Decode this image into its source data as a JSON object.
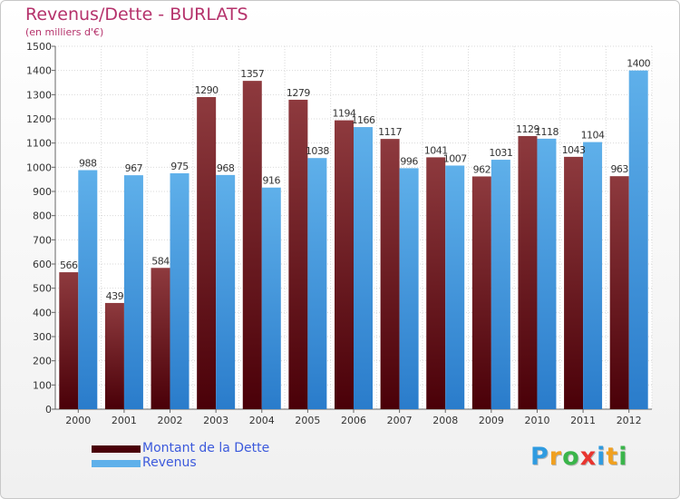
{
  "colors": {
    "dette_dark": "#4a0008",
    "dette_light": "#8e3a3e",
    "revenus_dark": "#2a7ccb",
    "revenus_light": "#5fb0ea",
    "title": "#b5326b",
    "legend_text": "#3c5adc"
  },
  "chart_data": {
    "type": "bar",
    "title": "Revenus/Dette - BURLATS",
    "subtitle": "(en milliers d'€)",
    "categories": [
      "2000",
      "2001",
      "2002",
      "2003",
      "2004",
      "2005",
      "2006",
      "2007",
      "2008",
      "2009",
      "2010",
      "2011",
      "2012"
    ],
    "series": [
      {
        "name": "Montant de la Dette",
        "values": [
          566,
          439,
          584,
          1290,
          1357,
          1279,
          1194,
          1117,
          1041,
          962,
          1129,
          1043,
          963
        ]
      },
      {
        "name": "Revenus",
        "values": [
          988,
          967,
          975,
          968,
          916,
          1038,
          1166,
          996,
          1007,
          1031,
          1118,
          1104,
          1400
        ]
      }
    ],
    "ylim": [
      0,
      1500
    ],
    "yticks": [
      0,
      100,
      200,
      300,
      400,
      500,
      600,
      700,
      800,
      900,
      1000,
      1100,
      1200,
      1300,
      1400,
      1500
    ],
    "grid": true,
    "legend_placement": "bottom-left"
  },
  "logo": {
    "text": "Proxiti",
    "letters": [
      "P",
      "r",
      "o",
      "x",
      "i",
      "t",
      "i"
    ],
    "icon": "proxiti-logo"
  }
}
